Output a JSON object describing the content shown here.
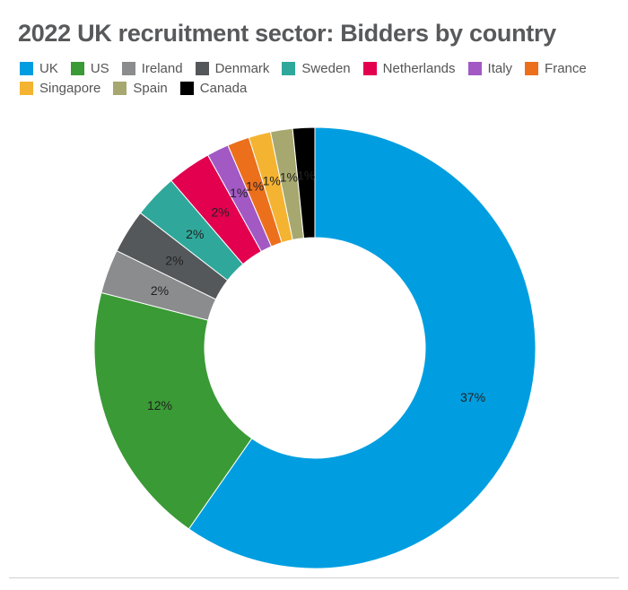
{
  "chart_data": {
    "type": "pie",
    "subtype": "donut",
    "title": "2022 UK recruitment sector: Bidders by country",
    "legend_position": "top",
    "slices": [
      {
        "name": "UK",
        "value": 37,
        "label": "37%",
        "color": "#009ee0",
        "label_color": "#222222"
      },
      {
        "name": "US",
        "value": 12,
        "label": "12%",
        "color": "#3a9a35",
        "label_color": "#222222"
      },
      {
        "name": "Ireland",
        "value": 2,
        "label": "2%",
        "color": "#8a8c8e",
        "label_color": "#222222"
      },
      {
        "name": "Denmark",
        "value": 2,
        "label": "2%",
        "color": "#55585b",
        "label_color": "#222222"
      },
      {
        "name": "Sweden",
        "value": 2,
        "label": "2%",
        "color": "#2fa89b",
        "label_color": "#222222"
      },
      {
        "name": "Netherlands",
        "value": 2,
        "label": "2%",
        "color": "#e2004f",
        "label_color": "#222222"
      },
      {
        "name": "Italy",
        "value": 1,
        "label": "1%",
        "color": "#a259c4",
        "label_color": "#222222"
      },
      {
        "name": "France",
        "value": 1,
        "label": "1%",
        "color": "#ec6f1c",
        "label_color": "#222222"
      },
      {
        "name": "Singapore",
        "value": 1,
        "label": "1%",
        "color": "#f4b431",
        "label_color": "#222222"
      },
      {
        "name": "Spain",
        "value": 1,
        "label": "1%",
        "color": "#a6a86f",
        "label_color": "#222222"
      },
      {
        "name": "Canada",
        "value": 1,
        "label": "1%",
        "color": "#000000",
        "label_color": "#ffffff"
      }
    ]
  }
}
